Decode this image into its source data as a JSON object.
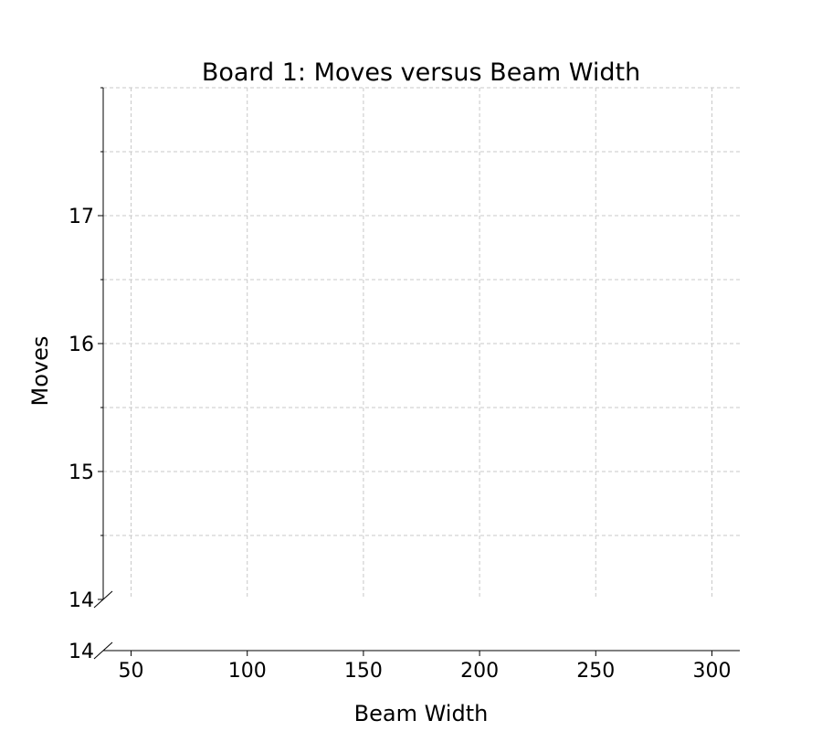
{
  "chart_data": {
    "type": "line",
    "title": "Board 1: Moves versus Beam Width",
    "xlabel": "Beam Width",
    "ylabel": "Moves",
    "x": [],
    "series": [],
    "xlim": [
      38,
      312
    ],
    "ylim": [
      14,
      18
    ],
    "broken_y_axis": true,
    "xticks": [
      50,
      100,
      150,
      200,
      250,
      300
    ],
    "xtick_labels": [
      "50",
      "100",
      "150",
      "200",
      "250",
      "300"
    ],
    "yticks_major": [
      14,
      15,
      16,
      17
    ],
    "ytick_labels": [
      "14",
      "15",
      "16",
      "17"
    ],
    "yticks_minor": [
      14.5,
      15.5,
      16.5,
      17.5,
      18
    ],
    "lower_axis_tick_label": "14",
    "grid": true,
    "colors": {
      "grid": "#c8c8c8",
      "axis": "#000000",
      "text": "#000000"
    }
  }
}
